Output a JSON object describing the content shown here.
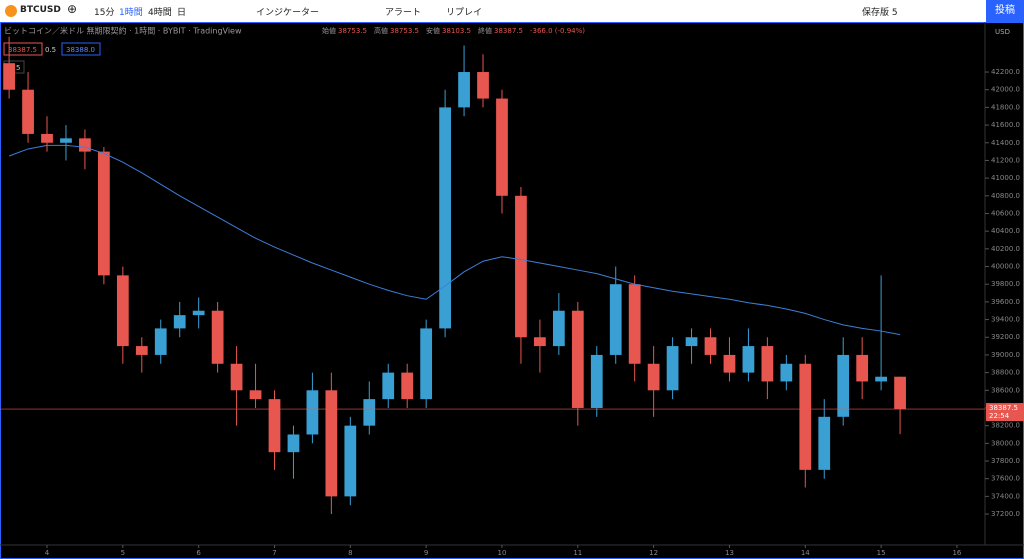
{
  "toolbar": {
    "symbol": "BTCUSD",
    "intervals": [
      "15分",
      "1時間",
      "4時間",
      "日"
    ],
    "indicators": "インジケーター",
    "alert": "アラート",
    "replay": "リプレイ",
    "save": "保存版 5",
    "publish": "投稿"
  },
  "legend": {
    "title": "ビットコイン／米ドル 無期限契約 · 1時間 · BYBIT · TradingView",
    "open_label": "始値",
    "high_label": "高値",
    "low_label": "安値",
    "close_label": "終値",
    "change": "-366.0 (-0.94%)",
    "bid": "38388.0",
    "tail": "0.5",
    "count": "5",
    "currency": "USD",
    "countdown": "22:54"
  },
  "chart_data": {
    "type": "candlestick",
    "x": [
      3.5,
      3.75,
      4,
      4.25,
      4.5,
      4.75,
      5,
      5.25,
      5.5,
      5.75,
      6,
      6.25,
      6.5,
      6.75,
      7,
      7.25,
      7.5,
      7.75,
      8,
      8.25,
      8.5,
      8.75,
      9,
      9.25,
      9.5,
      9.75,
      10,
      10.25,
      10.5,
      10.75,
      11,
      11.25,
      11.5,
      11.75,
      12,
      12.25,
      12.5,
      12.75,
      13,
      13.25,
      13.5,
      13.75,
      14,
      14.25,
      14.5,
      14.75,
      15,
      15.25
    ],
    "open": [
      42300,
      42000,
      41500,
      41400,
      41450,
      41300,
      39900,
      39100,
      39000,
      39300,
      39450,
      39500,
      38900,
      38600,
      38500,
      37900,
      38100,
      38600,
      37400,
      38200,
      38500,
      38800,
      38500,
      39300,
      41800,
      42200,
      41900,
      40800,
      39200,
      39100,
      39500,
      38400,
      39000,
      39800,
      38900,
      38600,
      39100,
      39200,
      39000,
      38800,
      39100,
      38700,
      38900,
      37700,
      38300,
      39000,
      38700,
      38753.5
    ],
    "high": [
      42600,
      42200,
      41700,
      41600,
      41550,
      41350,
      40000,
      39200,
      39400,
      39600,
      39650,
      39600,
      39100,
      38900,
      38600,
      38200,
      38800,
      38800,
      38300,
      38700,
      38900,
      38900,
      39400,
      42000,
      42500,
      42400,
      42000,
      40900,
      39400,
      39700,
      39600,
      39100,
      40000,
      39900,
      39100,
      39200,
      39300,
      39300,
      39200,
      39300,
      39200,
      39000,
      39000,
      38500,
      39200,
      39200,
      39900,
      38753.5
    ],
    "low": [
      41900,
      41400,
      41300,
      41200,
      41100,
      39800,
      38900,
      38800,
      38900,
      39200,
      39300,
      38800,
      38200,
      38400,
      37700,
      37600,
      38000,
      37200,
      37300,
      38100,
      38400,
      38400,
      38400,
      39200,
      41700,
      41800,
      40600,
      38900,
      38800,
      39000,
      38200,
      38300,
      38900,
      38700,
      38300,
      38500,
      38900,
      38900,
      38700,
      38700,
      38500,
      38600,
      37500,
      37600,
      38200,
      38500,
      38600,
      38103.5
    ],
    "close": [
      42000,
      41500,
      41400,
      41450,
      41300,
      39900,
      39100,
      39000,
      39300,
      39450,
      39500,
      38900,
      38600,
      38500,
      37900,
      38100,
      38600,
      37400,
      38200,
      38500,
      38800,
      38500,
      39300,
      41800,
      42200,
      41900,
      40800,
      39200,
      39100,
      39500,
      38400,
      39000,
      39800,
      38900,
      38600,
      39100,
      39200,
      39000,
      38800,
      39100,
      38700,
      38900,
      37700,
      38300,
      39000,
      38700,
      38753.5,
      38387.5
    ],
    "up_color": "#3aa0d4",
    "down_color": "#e8574f",
    "ma": {
      "color": "#3d7fd8",
      "values": [
        41250,
        41330,
        41370,
        41370,
        41350,
        41280,
        41180,
        41060,
        40930,
        40800,
        40680,
        40560,
        40440,
        40320,
        40220,
        40130,
        40040,
        39960,
        39880,
        39800,
        39730,
        39670,
        39630,
        39780,
        39940,
        40060,
        40110,
        40080,
        40040,
        40000,
        39960,
        39920,
        39860,
        39800,
        39760,
        39720,
        39690,
        39660,
        39630,
        39590,
        39560,
        39520,
        39470,
        39400,
        39340,
        39300,
        39270,
        39230
      ]
    },
    "xlim": [
      3.38,
      16.37
    ],
    "xticks": [
      4,
      5,
      6,
      7,
      8,
      9,
      10,
      11,
      12,
      13,
      14,
      15,
      16
    ],
    "ylim": [
      36850,
      42766
    ],
    "yticks": [
      {
        "value": 37200,
        "label": "37200.0"
      },
      {
        "value": 37400,
        "label": "37400.0"
      },
      {
        "value": 37600,
        "label": "37600.0"
      },
      {
        "value": 37800,
        "label": "37800.0"
      },
      {
        "value": 38000,
        "label": "38000.0"
      },
      {
        "value": 38200,
        "label": "38200.0"
      },
      {
        "value": 38400,
        "label": "38400.0"
      },
      {
        "value": 38600,
        "label": "38600.0"
      },
      {
        "value": 38800,
        "label": "38800.0"
      },
      {
        "value": 39000,
        "label": "39000.0"
      },
      {
        "value": 39200,
        "label": "39200.0"
      },
      {
        "value": 39400,
        "label": "39400.0"
      },
      {
        "value": 39600,
        "label": "39600.0"
      },
      {
        "value": 39800,
        "label": "39800.0"
      },
      {
        "value": 40000,
        "label": "40000.0"
      },
      {
        "value": 40200,
        "label": "40200.0"
      },
      {
        "value": 40400,
        "label": "40400.0"
      },
      {
        "value": 40600,
        "label": "40600.0"
      },
      {
        "value": 40800,
        "label": "40800.0"
      },
      {
        "value": 41000,
        "label": "41000.0"
      },
      {
        "value": 41200,
        "label": "41200.0"
      },
      {
        "value": 41400,
        "label": "41400.0"
      },
      {
        "value": 41600,
        "label": "41600.0"
      },
      {
        "value": 41800,
        "label": "41800.0"
      },
      {
        "value": 42000,
        "label": "42000.0"
      },
      {
        "value": 42200,
        "label": "42200.0"
      }
    ]
  }
}
